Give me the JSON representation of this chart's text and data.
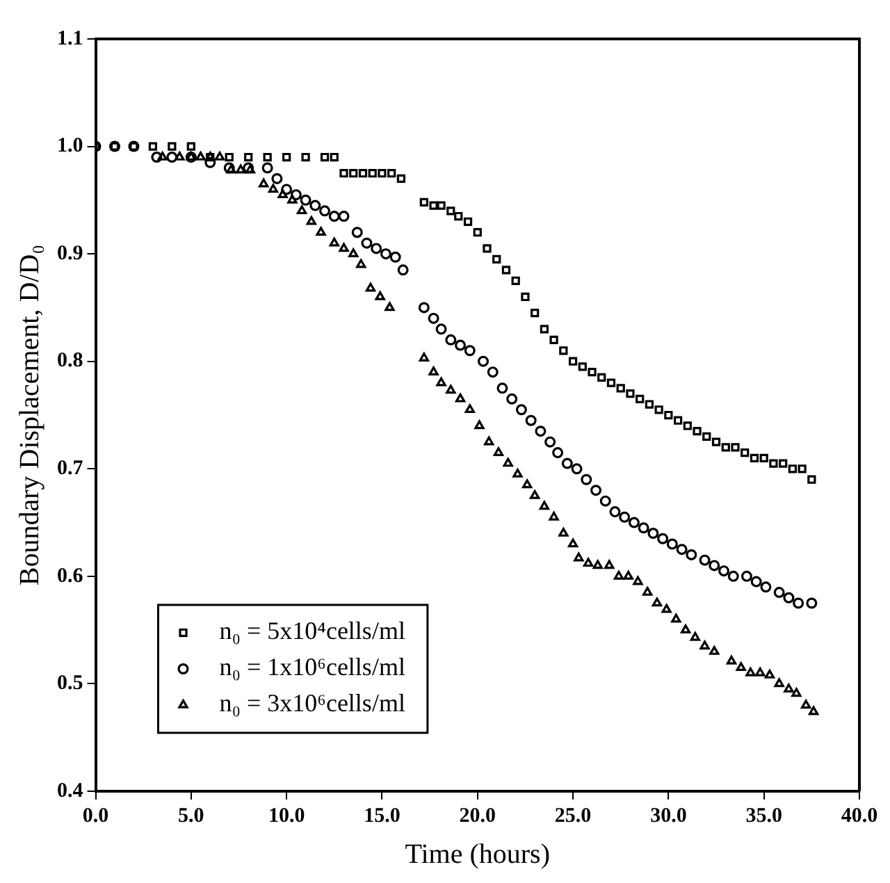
{
  "chart_data": {
    "type": "scatter",
    "xlabel": "Time (hours)",
    "ylabel": "Boundary Displacement, D/D₀",
    "xlim": [
      0,
      40
    ],
    "xticks": [
      {
        "value": 0,
        "label": "0.0"
      },
      {
        "value": 5,
        "label": "5.0"
      },
      {
        "value": 10,
        "label": "10.0"
      },
      {
        "value": 15,
        "label": "15.0"
      },
      {
        "value": 20,
        "label": "20.0"
      },
      {
        "value": 25,
        "label": "25.0"
      },
      {
        "value": 30,
        "label": "30.0"
      },
      {
        "value": 35,
        "label": "35.0"
      },
      {
        "value": 40,
        "label": "40.0"
      }
    ],
    "ylim": [
      0.4,
      1.1
    ],
    "yticks": [
      0.4,
      0.5,
      0.6,
      0.7,
      0.8,
      0.9,
      {
        "value": 1,
        "label": "1.0"
      },
      1.1
    ],
    "grid": false,
    "legend": "bottom left",
    "series": [
      {
        "name": "n₀ = 5x10⁴cells/ml",
        "color": "#000000",
        "marker": "square",
        "x": [
          0,
          1,
          2,
          3,
          4,
          5,
          6,
          7,
          8,
          9,
          10,
          11,
          12,
          12.5,
          13,
          13.5,
          14,
          14.5,
          15,
          15.5,
          16,
          17.2,
          17.7,
          18.1,
          18.6,
          19,
          19.5,
          20,
          20.5,
          21,
          21.5,
          22,
          22.5,
          23,
          23.5,
          24,
          24.5,
          25,
          25.5,
          26,
          26.5,
          27,
          27.5,
          28,
          28.5,
          29,
          29.5,
          30,
          30.5,
          31,
          31.5,
          32,
          32.5,
          33,
          33.5,
          34,
          34.5,
          35,
          35.5,
          36,
          36.5,
          37,
          37.5
        ],
        "values": [
          1.0,
          1.0,
          1.0,
          1.0,
          1.0,
          1.0,
          0.99,
          0.99,
          0.99,
          0.99,
          0.99,
          0.99,
          0.99,
          0.99,
          0.975,
          0.975,
          0.975,
          0.975,
          0.975,
          0.975,
          0.97,
          0.948,
          0.945,
          0.945,
          0.94,
          0.935,
          0.93,
          0.92,
          0.905,
          0.895,
          0.885,
          0.875,
          0.86,
          0.845,
          0.83,
          0.82,
          0.81,
          0.8,
          0.795,
          0.79,
          0.785,
          0.78,
          0.775,
          0.77,
          0.765,
          0.76,
          0.755,
          0.75,
          0.745,
          0.74,
          0.735,
          0.73,
          0.725,
          0.72,
          0.72,
          0.715,
          0.71,
          0.71,
          0.705,
          0.705,
          0.7,
          0.7,
          0.69
        ]
      },
      {
        "name": "n₀ = 1x10⁶cells/ml",
        "color": "#000000",
        "marker": "circle",
        "x": [
          0,
          1,
          2,
          3.2,
          4,
          5,
          6,
          7,
          8,
          9,
          9.5,
          10,
          10.5,
          11,
          11.5,
          12,
          12.5,
          13,
          13.7,
          14.2,
          14.7,
          15.2,
          15.7,
          16.1,
          17.2,
          17.7,
          18.1,
          18.6,
          19.1,
          19.6,
          20.3,
          20.8,
          21.3,
          21.8,
          22.3,
          22.8,
          23.3,
          23.8,
          24.2,
          24.7,
          25.2,
          25.7,
          26.2,
          26.7,
          27.2,
          27.7,
          28.2,
          28.7,
          29.2,
          29.7,
          30.2,
          30.7,
          31.2,
          31.9,
          32.4,
          32.9,
          33.4,
          34.1,
          34.6,
          35.1,
          35.8,
          36.3,
          36.8,
          37.5
        ],
        "values": [
          1.0,
          1.0,
          1.0,
          0.99,
          0.99,
          0.99,
          0.985,
          0.98,
          0.98,
          0.98,
          0.97,
          0.96,
          0.955,
          0.95,
          0.945,
          0.94,
          0.935,
          0.935,
          0.92,
          0.91,
          0.905,
          0.9,
          0.897,
          0.885,
          0.85,
          0.84,
          0.83,
          0.82,
          0.815,
          0.81,
          0.8,
          0.79,
          0.775,
          0.765,
          0.755,
          0.745,
          0.735,
          0.725,
          0.715,
          0.705,
          0.7,
          0.69,
          0.68,
          0.67,
          0.66,
          0.655,
          0.65,
          0.645,
          0.64,
          0.635,
          0.63,
          0.625,
          0.62,
          0.615,
          0.61,
          0.605,
          0.6,
          0.6,
          0.595,
          0.59,
          0.585,
          0.58,
          0.575,
          0.575
        ]
      },
      {
        "name": "n₀ = 3x10⁶cells/ml",
        "color": "#000000",
        "marker": "triangle",
        "x": [
          3.5,
          4.4,
          5,
          5.5,
          6,
          6.5,
          7.1,
          7.6,
          8.1,
          8.8,
          9.3,
          9.8,
          10.3,
          10.8,
          11.3,
          11.8,
          12.5,
          13,
          13.5,
          13.9,
          14.4,
          14.9,
          15.4,
          17.2,
          17.7,
          18.1,
          18.6,
          19.1,
          19.6,
          20.1,
          20.6,
          21.1,
          21.6,
          22.1,
          22.6,
          23,
          23.5,
          24,
          24.5,
          25,
          25.3,
          25.8,
          26.3,
          26.9,
          27.4,
          27.9,
          28.4,
          28.9,
          29.4,
          29.9,
          30.4,
          30.9,
          31.4,
          31.9,
          32.4,
          33.3,
          33.8,
          34.3,
          34.8,
          35.3,
          35.8,
          36.3,
          36.7,
          37.2,
          37.6
        ],
        "values": [
          0.99,
          0.99,
          0.99,
          0.99,
          0.99,
          0.99,
          0.978,
          0.978,
          0.978,
          0.965,
          0.96,
          0.955,
          0.95,
          0.94,
          0.93,
          0.92,
          0.91,
          0.905,
          0.9,
          0.89,
          0.868,
          0.86,
          0.85,
          0.803,
          0.79,
          0.78,
          0.773,
          0.765,
          0.755,
          0.74,
          0.725,
          0.715,
          0.705,
          0.695,
          0.685,
          0.675,
          0.665,
          0.655,
          0.64,
          0.63,
          0.617,
          0.612,
          0.61,
          0.61,
          0.6,
          0.6,
          0.595,
          0.585,
          0.575,
          0.569,
          0.56,
          0.55,
          0.543,
          0.535,
          0.53,
          0.521,
          0.515,
          0.51,
          0.51,
          0.508,
          0.5,
          0.495,
          0.491,
          0.48,
          0.474
        ]
      }
    ]
  }
}
